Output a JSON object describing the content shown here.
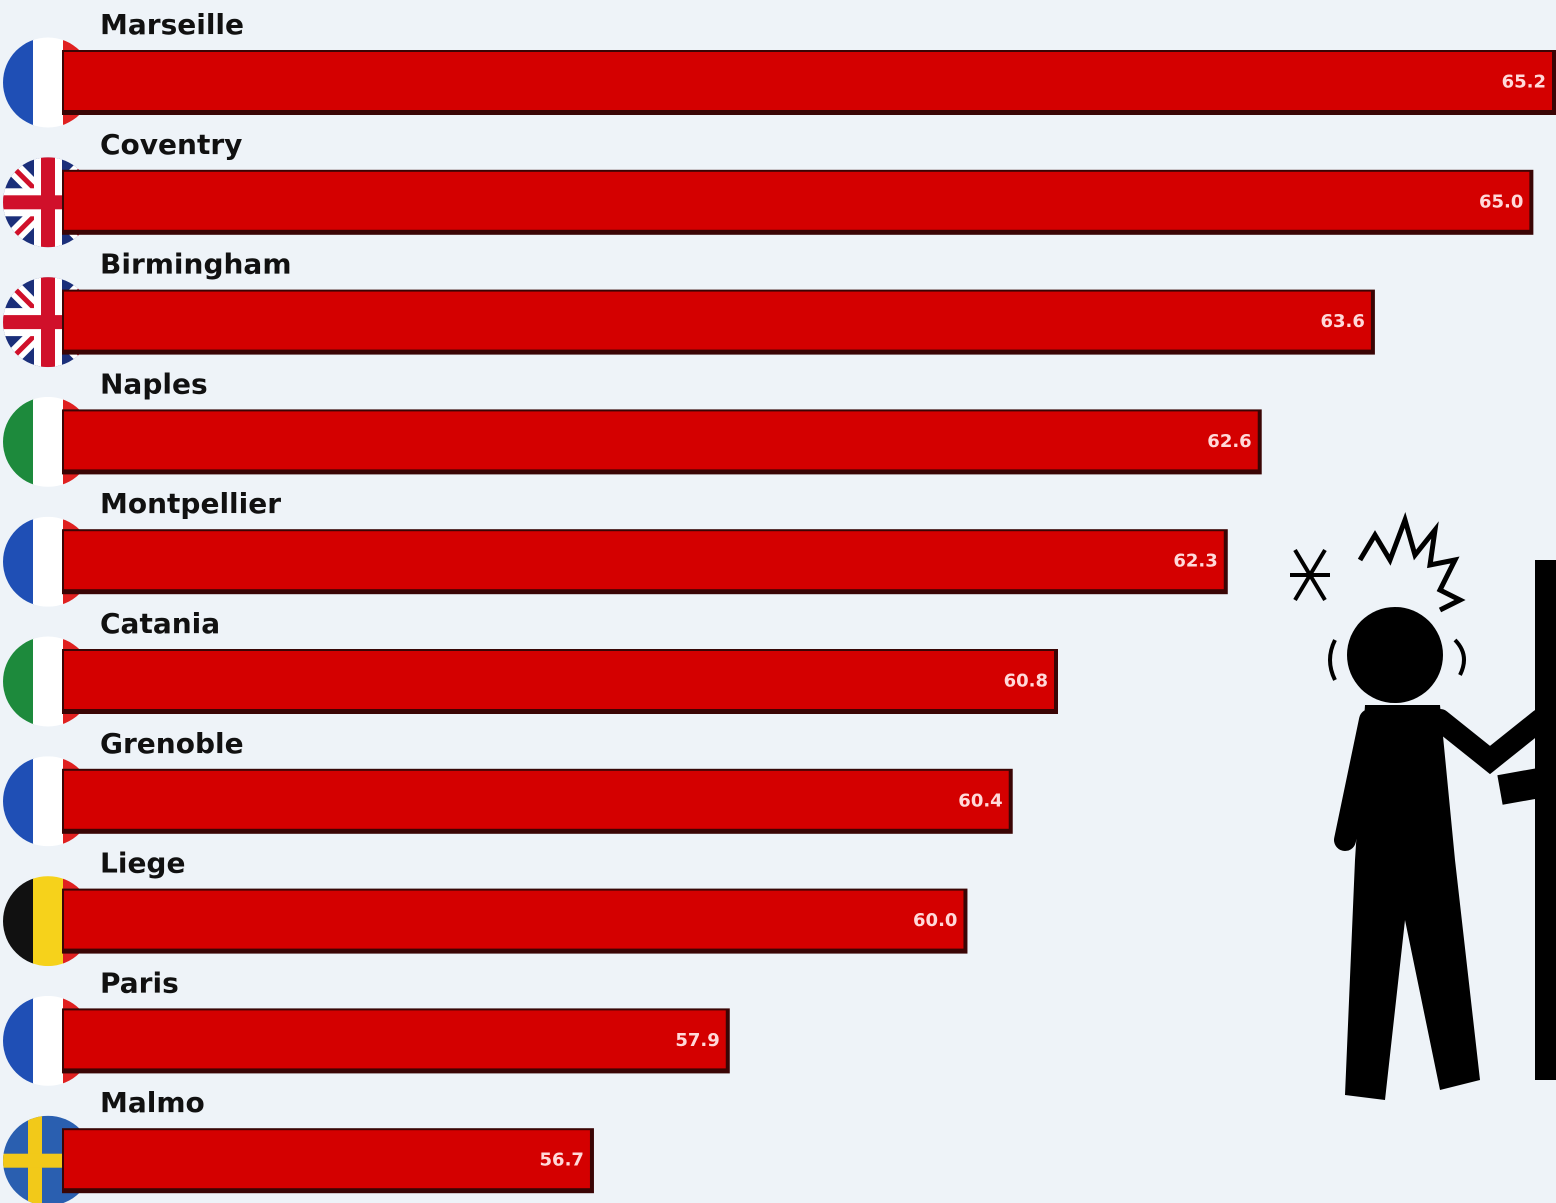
{
  "chart_data": {
    "type": "bar",
    "orientation": "horizontal",
    "categories": [
      "Marseille",
      "Coventry",
      "Birmingham",
      "Naples",
      "Montpellier",
      "Catania",
      "Grenoble",
      "Liege",
      "Paris",
      "Malmo"
    ],
    "values": [
      65.2,
      65.0,
      63.6,
      62.6,
      62.3,
      60.8,
      60.4,
      60.0,
      57.9,
      56.7
    ],
    "value_labels": [
      "65.2",
      "65.0",
      "63.6",
      "62.6",
      "62.3",
      "60.8",
      "60.4",
      "60.0",
      "57.9",
      "56.7"
    ],
    "color": "#d40000",
    "xlim": [
      52,
      65.2
    ]
  }
}
